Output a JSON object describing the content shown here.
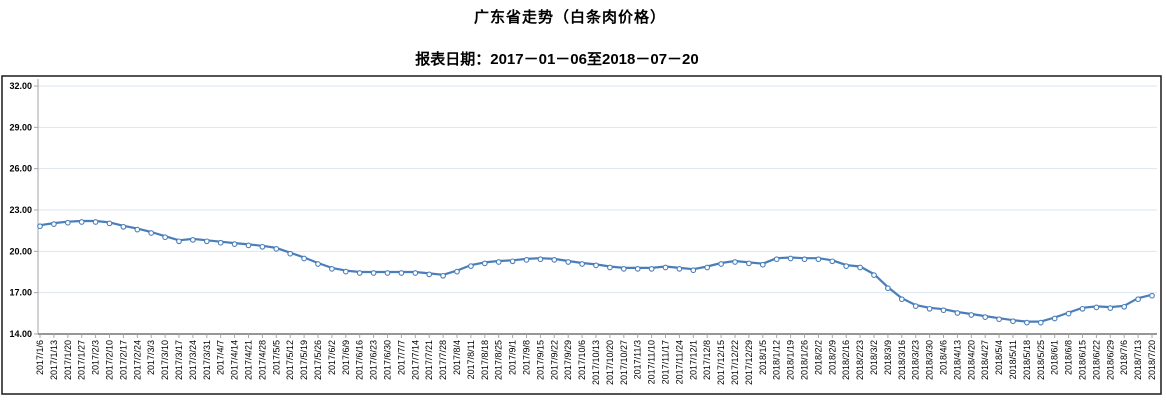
{
  "title": "广东省走势（白条肉价格）",
  "subtitle": "报表日期：2017－01－06至2018－07－20",
  "chart_data": {
    "type": "line",
    "title": "广东省走势（白条肉价格）",
    "subtitle": "报表日期：2017－01－06至2018－07－20",
    "ylim": [
      14,
      32
    ],
    "yticks": [
      32,
      29,
      26,
      23,
      20,
      17,
      14
    ],
    "ytick_labels": [
      "32.00",
      "29.00",
      "26.00",
      "23.00",
      "20.00",
      "17.00",
      "14.00"
    ],
    "grid": true,
    "legend": false,
    "marker": "open-circle",
    "colors": {
      "line": "#4a7ebb",
      "marker_fill": "#ffffff",
      "grid": "#dbe5f1",
      "y_axis": "#a6a6a6",
      "x_axis": "#595959",
      "tick": "#a6a6a6",
      "border": "#1a1a1a",
      "text": "#000000"
    },
    "x": [
      "2017/1/6",
      "2017/1/13",
      "2017/1/20",
      "2017/1/27",
      "2017/2/3",
      "2017/2/10",
      "2017/2/17",
      "2017/2/24",
      "2017/3/3",
      "2017/3/10",
      "2017/3/17",
      "2017/3/24",
      "2017/3/31",
      "2017/4/7",
      "2017/4/14",
      "2017/4/21",
      "2017/4/28",
      "2017/5/5",
      "2017/5/12",
      "2017/5/19",
      "2017/5/26",
      "2017/6/2",
      "2017/6/9",
      "2017/6/16",
      "2017/6/23",
      "2017/6/30",
      "2017/7/7",
      "2017/7/14",
      "2017/7/21",
      "2017/7/28",
      "2017/8/4",
      "2017/8/11",
      "2017/8/18",
      "2017/8/25",
      "2017/9/1",
      "2017/9/8",
      "2017/9/15",
      "2017/9/22",
      "2017/9/29",
      "2017/10/6",
      "2017/10/13",
      "2017/10/20",
      "2017/10/27",
      "2017/11/3",
      "2017/11/10",
      "2017/11/17",
      "2017/11/24",
      "2017/12/1",
      "2017/12/8",
      "2017/12/15",
      "2017/12/22",
      "2017/12/29",
      "2018/1/5",
      "2018/1/12",
      "2018/1/19",
      "2018/1/26",
      "2018/2/2",
      "2018/2/9",
      "2018/2/16",
      "2018/2/23",
      "2018/3/2",
      "2018/3/9",
      "2018/3/16",
      "2018/3/23",
      "2018/3/30",
      "2018/4/6",
      "2018/4/13",
      "2018/4/20",
      "2018/4/27",
      "2018/5/4",
      "2018/5/11",
      "2018/5/18",
      "2018/5/25",
      "2018/6/1",
      "2018/6/8",
      "2018/6/15",
      "2018/6/22",
      "2018/6/29",
      "2018/7/6",
      "2018/7/13",
      "2018/7/20"
    ],
    "values": [
      21.9,
      22.05,
      22.15,
      22.2,
      22.2,
      22.1,
      21.85,
      21.65,
      21.4,
      21.1,
      20.8,
      20.9,
      20.8,
      20.7,
      20.6,
      20.5,
      20.4,
      20.25,
      19.9,
      19.55,
      19.15,
      18.8,
      18.6,
      18.5,
      18.5,
      18.5,
      18.5,
      18.5,
      18.4,
      18.3,
      18.6,
      19.0,
      19.2,
      19.3,
      19.35,
      19.45,
      19.5,
      19.45,
      19.3,
      19.15,
      19.05,
      18.9,
      18.8,
      18.8,
      18.8,
      18.9,
      18.8,
      18.7,
      18.9,
      19.15,
      19.3,
      19.2,
      19.1,
      19.5,
      19.55,
      19.5,
      19.5,
      19.35,
      19.0,
      18.9,
      18.35,
      17.4,
      16.6,
      16.1,
      15.9,
      15.8,
      15.6,
      15.45,
      15.3,
      15.15,
      15.0,
      14.9,
      14.9,
      15.2,
      15.55,
      15.9,
      16.0,
      15.95,
      16.05,
      16.6,
      16.85
    ]
  }
}
